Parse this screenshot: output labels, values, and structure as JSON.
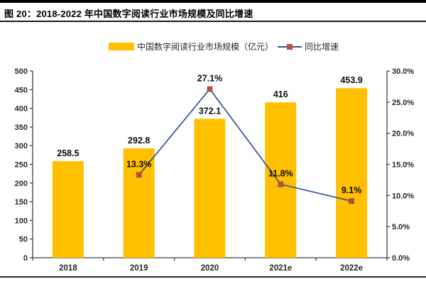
{
  "header": {
    "title": "图 20：2018-2022 年中国数字阅读行业市场规模及同比增速"
  },
  "legend": {
    "bars_label": "中国数字阅读行业市场规模（亿元）",
    "line_label": "同比增速"
  },
  "colors": {
    "bar": "#FFC000",
    "line": "#2F5597",
    "marker": "#BE4B48",
    "axis": "#404040",
    "tick_text": "#262626",
    "data_label": "#0d0d0d"
  },
  "chart_data": {
    "type": "bar+line combo",
    "title": "2018-2022 年中国数字阅读行业市场规模及同比增速",
    "categories": [
      "2018",
      "2019",
      "2020",
      "2021e",
      "2022e"
    ],
    "series": [
      {
        "name": "中国数字阅读行业市场规模（亿元）",
        "type": "bar",
        "axis": "left",
        "values": [
          258.5,
          292.8,
          372.1,
          416,
          453.9
        ],
        "labels": [
          "258.5",
          "292.8",
          "372.1",
          "416",
          "453.9"
        ]
      },
      {
        "name": "同比增速",
        "type": "line",
        "axis": "right",
        "values": [
          null,
          13.3,
          27.1,
          11.8,
          9.1
        ],
        "labels": [
          null,
          "13.3%",
          "27.1%",
          "11.8%",
          "9.1%"
        ]
      }
    ],
    "left_axis": {
      "min": 0,
      "max": 500,
      "step": 50,
      "ticks": [
        "0",
        "50",
        "100",
        "150",
        "200",
        "250",
        "300",
        "350",
        "400",
        "450",
        "500"
      ]
    },
    "right_axis": {
      "min": 0,
      "max": 30,
      "step": 5,
      "ticks": [
        "0.0%",
        "5.0%",
        "10.0%",
        "15.0%",
        "20.0%",
        "25.0%",
        "30.0%"
      ]
    },
    "grid": false,
    "legend_position": "top-center"
  }
}
